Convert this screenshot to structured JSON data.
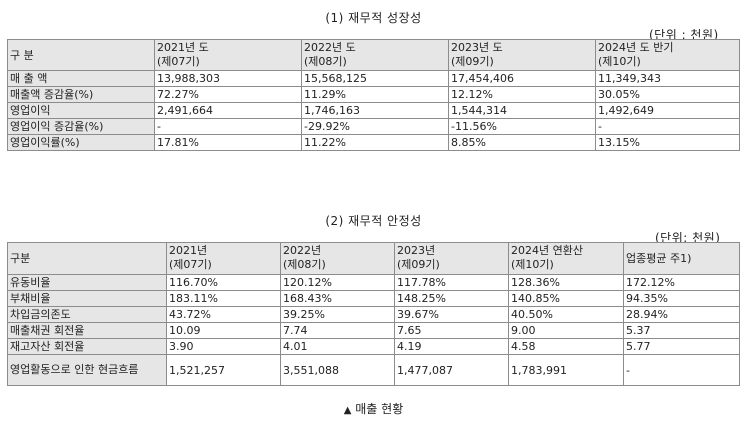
{
  "growth": {
    "title": "(1) 재무적 성장성",
    "unit": "(단위 : 천원)",
    "header": [
      "구 분",
      "2021년 도\n(제07기)",
      "2022년 도\n(제08기)",
      "2023년 도\n(제09기)",
      "2024년 도 반기\n(제10기)"
    ],
    "rows": [
      [
        "매 출 액",
        "13,988,303",
        "15,568,125",
        "17,454,406",
        "11,349,343"
      ],
      [
        "매출액 증감율(%)",
        "72.27%",
        "11.29%",
        "12.12%",
        "30.05%"
      ],
      [
        "영업이익",
        "2,491,664",
        "1,746,163",
        "1,544,314",
        "1,492,649"
      ],
      [
        "영업이익 증감율(%)",
        "-",
        "-29.92%",
        "-11.56%",
        "-"
      ],
      [
        "영업이익률(%)",
        "17.81%",
        "11.22%",
        "8.85%",
        "13.15%"
      ]
    ]
  },
  "stability": {
    "title": "(2) 재무적 안정성",
    "unit": "(단위: 천원)",
    "header": [
      "구분",
      "2021년\n(제07기)",
      "2022년\n(제08기)",
      "2023년\n(제09기)",
      "2024년 연환산\n(제10기)",
      "업종평균 주1)"
    ],
    "rows": [
      [
        "유동비율",
        "116.70%",
        "120.12%",
        "117.78%",
        "128.36%",
        "172.12%"
      ],
      [
        "부채비율",
        "183.11%",
        "168.43%",
        "148.25%",
        "140.85%",
        "94.35%"
      ],
      [
        "차입금의존도",
        "43.72%",
        "39.25%",
        "39.67%",
        "40.50%",
        "28.94%"
      ],
      [
        "매출채권 회전율",
        "10.09",
        "7.74",
        "7.65",
        "9.00",
        "5.37"
      ],
      [
        "재고자산 회전율",
        "3.90",
        "4.01",
        "4.19",
        "4.58",
        "5.77"
      ],
      [
        "영업활동으로 인한 현금흐름",
        "1,521,257",
        "3,551,088",
        "1,477,087",
        "1,783,991",
        "-"
      ]
    ]
  },
  "caption": {
    "icon": "triangle-up-icon",
    "text": "매출 현황"
  }
}
